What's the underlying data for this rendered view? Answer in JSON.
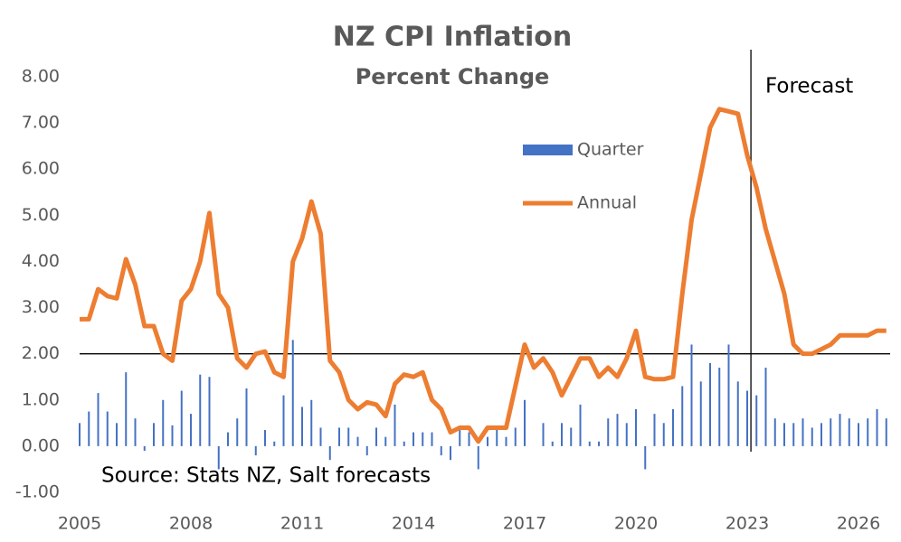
{
  "chart_data": {
    "type": "bar-line",
    "title": "NZ CPI Inflation",
    "subtitle": "Percent Change",
    "annotation": "Source: Stats NZ, Salt forecasts",
    "forecast_label": "Forecast",
    "forecast_start": 2023.1,
    "reference_line": 2,
    "legend_position": "upper center",
    "x": [
      2005,
      2005.25,
      2005.5,
      2005.75,
      2006,
      2006.25,
      2006.5,
      2006.75,
      2007,
      2007.25,
      2007.5,
      2007.75,
      2008,
      2008.25,
      2008.5,
      2008.75,
      2009,
      2009.25,
      2009.5,
      2009.75,
      2010,
      2010.25,
      2010.5,
      2010.75,
      2011,
      2011.25,
      2011.5,
      2011.75,
      2012,
      2012.25,
      2012.5,
      2012.75,
      2013,
      2013.25,
      2013.5,
      2013.75,
      2014,
      2014.25,
      2014.5,
      2014.75,
      2015,
      2015.25,
      2015.5,
      2015.75,
      2016,
      2016.25,
      2016.5,
      2016.75,
      2017,
      2017.25,
      2017.5,
      2017.75,
      2018,
      2018.25,
      2018.5,
      2018.75,
      2019,
      2019.25,
      2019.5,
      2019.75,
      2020,
      2020.25,
      2020.5,
      2020.75,
      2021,
      2021.25,
      2021.5,
      2021.75,
      2022,
      2022.25,
      2022.5,
      2022.75,
      2023,
      2023.25,
      2023.5,
      2023.75,
      2024,
      2024.25,
      2024.5,
      2024.75,
      2025,
      2025.25,
      2025.5,
      2025.75,
      2026,
      2026.25,
      2026.5,
      2026.75
    ],
    "series": [
      {
        "name": "Quarter",
        "type": "bar",
        "color": "#4472c4",
        "values": [
          0.5,
          0.75,
          1.15,
          0.75,
          0.5,
          1.6,
          0.6,
          -0.1,
          0.5,
          1.0,
          0.45,
          1.2,
          0.7,
          1.55,
          1.5,
          -0.5,
          0.3,
          0.6,
          1.25,
          -0.2,
          0.35,
          0.1,
          1.1,
          2.3,
          0.85,
          1.0,
          0.4,
          -0.3,
          0.4,
          0.4,
          0.2,
          -0.2,
          0.4,
          0.2,
          0.9,
          0.1,
          0.3,
          0.3,
          0.3,
          -0.2,
          -0.3,
          0.4,
          0.3,
          -0.5,
          0.2,
          0.4,
          0.2,
          0.4,
          1.0,
          0.0,
          0.5,
          0.1,
          0.5,
          0.4,
          0.9,
          0.1,
          0.1,
          0.6,
          0.7,
          0.5,
          0.8,
          -0.5,
          0.7,
          0.5,
          0.8,
          1.3,
          2.2,
          1.4,
          1.8,
          1.7,
          2.2,
          1.4,
          1.2,
          1.1,
          1.7,
          0.6,
          0.5,
          0.5,
          0.6,
          0.4,
          0.5,
          0.6,
          0.7,
          0.6,
          0.5,
          0.6,
          0.8,
          0.6
        ]
      },
      {
        "name": "Annual",
        "type": "line",
        "color": "#ed7d31",
        "values": [
          2.75,
          2.75,
          3.4,
          3.25,
          3.2,
          4.05,
          3.5,
          2.6,
          2.6,
          2.0,
          1.85,
          3.15,
          3.4,
          4.0,
          5.05,
          3.3,
          3.0,
          1.9,
          1.7,
          2.0,
          2.05,
          1.6,
          1.5,
          4.0,
          4.5,
          5.3,
          4.6,
          1.85,
          1.6,
          1.0,
          0.8,
          0.95,
          0.9,
          0.65,
          1.35,
          1.55,
          1.5,
          1.6,
          1.0,
          0.8,
          0.3,
          0.4,
          0.4,
          0.1,
          0.4,
          0.4,
          0.4,
          1.3,
          2.2,
          1.7,
          1.9,
          1.6,
          1.1,
          1.5,
          1.9,
          1.9,
          1.5,
          1.7,
          1.5,
          1.9,
          2.5,
          1.5,
          1.45,
          1.45,
          1.5,
          3.3,
          4.9,
          5.9,
          6.9,
          7.3,
          7.25,
          7.2,
          6.3,
          5.6,
          4.7,
          4.0,
          3.3,
          2.2,
          2.0,
          2.0,
          2.1,
          2.2,
          2.4,
          2.4,
          2.4,
          2.4,
          2.5,
          2.5
        ]
      }
    ],
    "xlim": [
      2005,
      2027
    ],
    "xticks": [
      2005,
      2008,
      2011,
      2014,
      2017,
      2020,
      2023,
      2026
    ],
    "ylim": [
      -1,
      8
    ],
    "yticks": [
      {
        "value": -1,
        "label": "-1.00"
      },
      {
        "value": 0,
        "label": "0.00"
      },
      {
        "value": 1,
        "label": "1.00"
      },
      {
        "value": 2,
        "label": "2.00"
      },
      {
        "value": 3,
        "label": "3.00"
      },
      {
        "value": 4,
        "label": "4.00"
      },
      {
        "value": 5,
        "label": "5.00"
      },
      {
        "value": 6,
        "label": "6.00"
      },
      {
        "value": 7,
        "label": "7.00"
      },
      {
        "value": 8,
        "label": "8.00"
      }
    ]
  }
}
